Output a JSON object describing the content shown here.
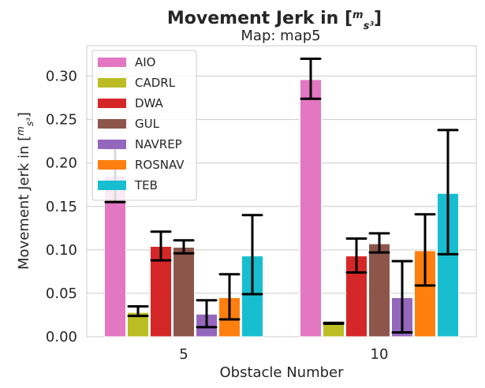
{
  "chart_data": {
    "type": "bar",
    "title": "Movement Jerk in [m/s³]",
    "title_prefix": "Movement Jerk in [",
    "title_unit_num": "m",
    "title_unit_den": "s³",
    "title_suffix": "]",
    "subtitle": "Map: map5",
    "xlabel": "Obstacle Number",
    "ylabel": "Movement Jerk in [m/s³]",
    "ylabel_prefix": "Movement Jerk in [",
    "ylabel_unit_num": "m",
    "ylabel_unit_den": "s³",
    "ylabel_suffix": "]",
    "categories": [
      "5",
      "10"
    ],
    "ylim": [
      0,
      0.335
    ],
    "yticks": [
      0.0,
      0.05,
      0.1,
      0.15,
      0.2,
      0.25,
      0.3
    ],
    "ytick_labels": [
      "0.00",
      "0.05",
      "0.10",
      "0.15",
      "0.20",
      "0.25",
      "0.30"
    ],
    "grid": true,
    "legend_position": "top-left",
    "series": [
      {
        "name": "AIO",
        "color": "#e377c2",
        "values": [
          0.185,
          0.296
        ],
        "err_low": [
          0.155,
          0.274
        ],
        "err_high": [
          0.217,
          0.32
        ]
      },
      {
        "name": "CADRL",
        "color": "#bcbd22",
        "values": [
          0.028,
          0.016
        ],
        "err_low": [
          0.024,
          0.015
        ],
        "err_high": [
          0.035,
          0.016
        ]
      },
      {
        "name": "DWA",
        "color": "#d62728",
        "values": [
          0.104,
          0.093
        ],
        "err_low": [
          0.088,
          0.074
        ],
        "err_high": [
          0.121,
          0.113
        ]
      },
      {
        "name": "GUL",
        "color": "#8c564b",
        "values": [
          0.103,
          0.107
        ],
        "err_low": [
          0.096,
          0.097
        ],
        "err_high": [
          0.111,
          0.119
        ]
      },
      {
        "name": "NAVREP",
        "color": "#9467bd",
        "values": [
          0.026,
          0.045
        ],
        "err_low": [
          0.011,
          0.005
        ],
        "err_high": [
          0.042,
          0.087
        ]
      },
      {
        "name": "ROSNAV",
        "color": "#ff7f0e",
        "values": [
          0.045,
          0.099
        ],
        "err_low": [
          0.02,
          0.059
        ],
        "err_high": [
          0.072,
          0.141
        ]
      },
      {
        "name": "TEB",
        "color": "#17becf",
        "values": [
          0.093,
          0.165
        ],
        "err_low": [
          0.049,
          0.095
        ],
        "err_high": [
          0.14,
          0.238
        ]
      }
    ]
  }
}
